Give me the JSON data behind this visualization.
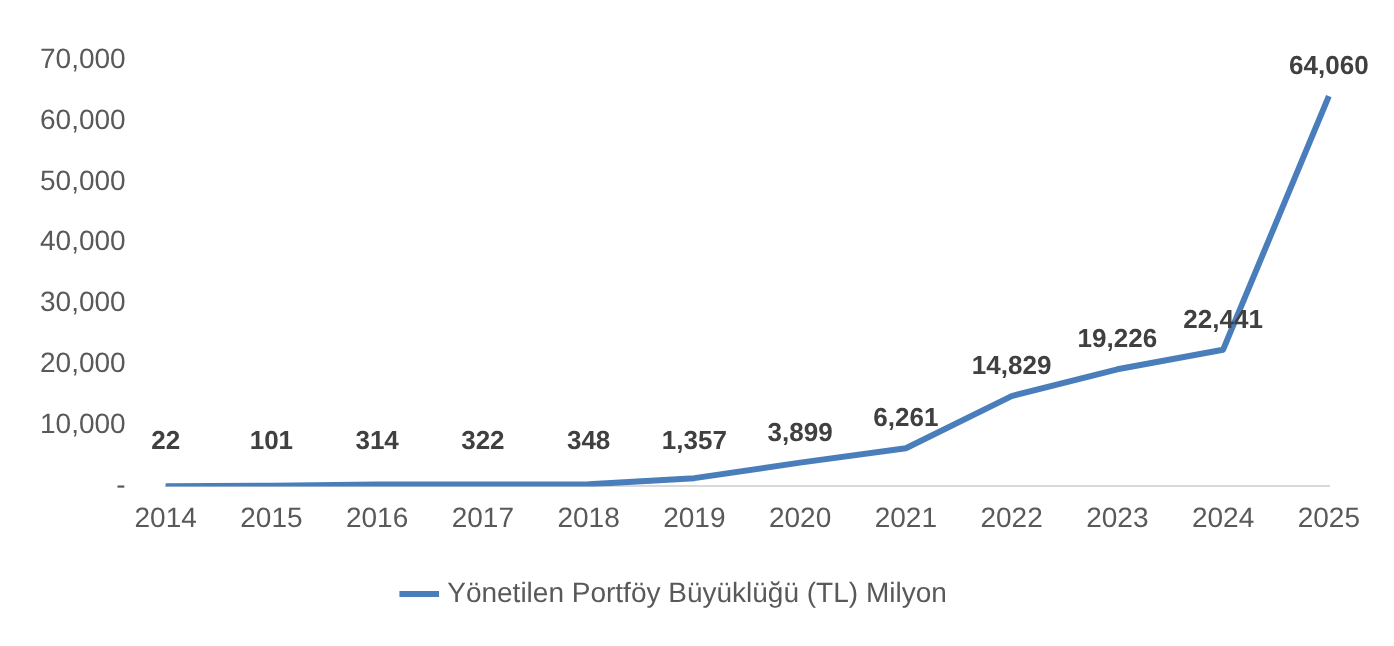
{
  "chart_data": {
    "type": "line",
    "categories": [
      "2014",
      "2015",
      "2016",
      "2017",
      "2018",
      "2019",
      "2020",
      "2021",
      "2022",
      "2023",
      "2024",
      "2025"
    ],
    "series": [
      {
        "name": "Yönetilen Portföy Büyüklüğü (TL) Milyon",
        "color": "#4a7ebb",
        "values": [
          22,
          101,
          314,
          322,
          348,
          1357,
          3899,
          6261,
          14829,
          19226,
          22441,
          64060
        ],
        "value_labels": [
          "22",
          "101",
          "314",
          "322",
          "348",
          "1,357",
          "3,899",
          "6,261",
          "14,829",
          "19,226",
          "22,441",
          "64,060"
        ]
      }
    ],
    "ylim": [
      0,
      70000
    ],
    "yticks": [
      {
        "value": 0,
        "label": "-"
      },
      {
        "value": 10000,
        "label": "10,000"
      },
      {
        "value": 20000,
        "label": "20,000"
      },
      {
        "value": 30000,
        "label": "30,000"
      },
      {
        "value": 40000,
        "label": "40,000"
      },
      {
        "value": 50000,
        "label": "50,000"
      },
      {
        "value": 60000,
        "label": "60,000"
      },
      {
        "value": 70000,
        "label": "70,000"
      }
    ],
    "grid": false,
    "legend": "bottom",
    "marker": "none",
    "line_style": "solid"
  }
}
